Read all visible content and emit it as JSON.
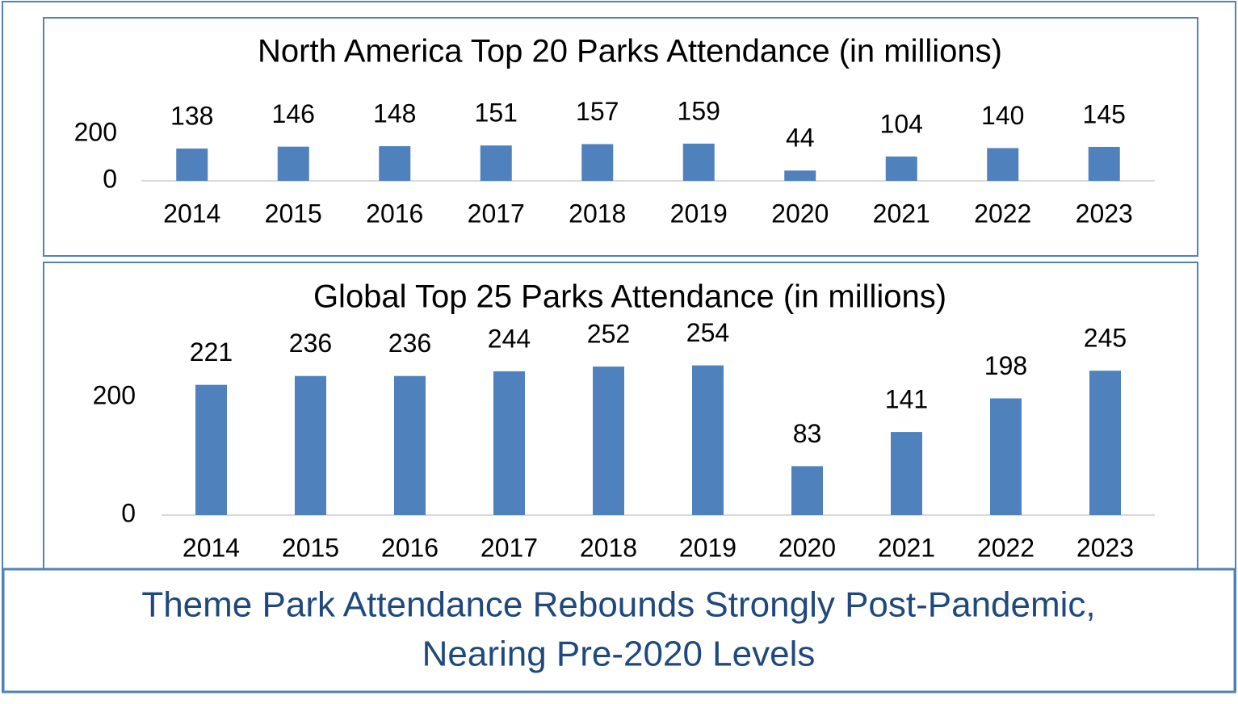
{
  "chart_data": [
    {
      "type": "bar",
      "title": "North America Top 20 Parks Attendance (in millions)",
      "categories": [
        "2014",
        "2015",
        "2016",
        "2017",
        "2018",
        "2019",
        "2020",
        "2021",
        "2022",
        "2023"
      ],
      "values": [
        138,
        146,
        148,
        151,
        157,
        159,
        44,
        104,
        140,
        145
      ],
      "color": "#4f81bd",
      "ylim": [
        0,
        200
      ],
      "yticks": [
        0,
        200
      ],
      "grid": false
    },
    {
      "type": "bar",
      "title": "Global Top 25 Parks Attendance (in millions)",
      "categories": [
        "2014",
        "2015",
        "2016",
        "2017",
        "2018",
        "2019",
        "2020",
        "2021",
        "2022",
        "2023"
      ],
      "values": [
        221,
        236,
        236,
        244,
        252,
        254,
        83,
        141,
        198,
        245
      ],
      "color": "#4f81bd",
      "ylim": [
        0,
        300
      ],
      "yticks": [
        0,
        200
      ],
      "grid": false
    }
  ],
  "caption": [
    "Theme Park Attendance Rebounds Strongly Post-Pandemic,",
    "Nearing Pre-2020 Levels"
  ]
}
